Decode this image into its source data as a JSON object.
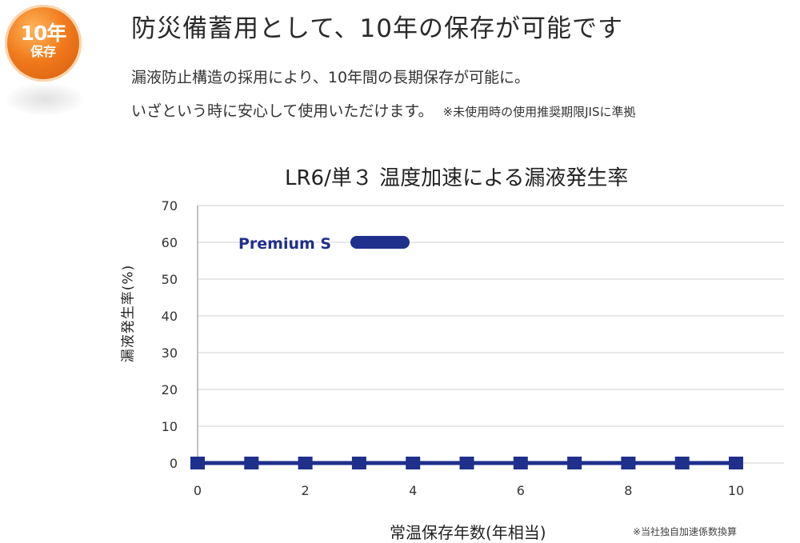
{
  "badge": {
    "line1": "10年",
    "line2": "保存"
  },
  "headline": "防災備蓄用として、10年の保存が可能です",
  "description": {
    "line1": "漏液防止構造の採用により、10年間の長期保存が可能に。",
    "line2": "いざという時に安心して使用いただけます。",
    "note": "※未使用時の使用推奨期限JISに準拠"
  },
  "colors": {
    "badge": "#f07a1c",
    "series": "#1f2f8c",
    "grid": "#d0d0d0"
  },
  "chart_data": {
    "type": "line",
    "title": "LR6/単３ 温度加速による漏液発生率",
    "xlabel": "常温保存年数(年相当)",
    "ylabel": "漏液発生率(%)",
    "xlim": [
      0,
      10
    ],
    "ylim": [
      0,
      70
    ],
    "xticks": [
      0,
      2,
      4,
      6,
      8,
      10
    ],
    "yticks": [
      0,
      10,
      20,
      30,
      40,
      50,
      60,
      70
    ],
    "grid": "horizontal",
    "legend_position": "top-left",
    "x": [
      0,
      1,
      2,
      3,
      4,
      5,
      6,
      7,
      8,
      9,
      10
    ],
    "series": [
      {
        "name": "Premium S",
        "values": [
          0,
          0,
          0,
          0,
          0,
          0,
          0,
          0,
          0,
          0,
          0
        ],
        "color": "#1f2f8c"
      }
    ],
    "footnote": "※当社独自加速係数換算"
  }
}
